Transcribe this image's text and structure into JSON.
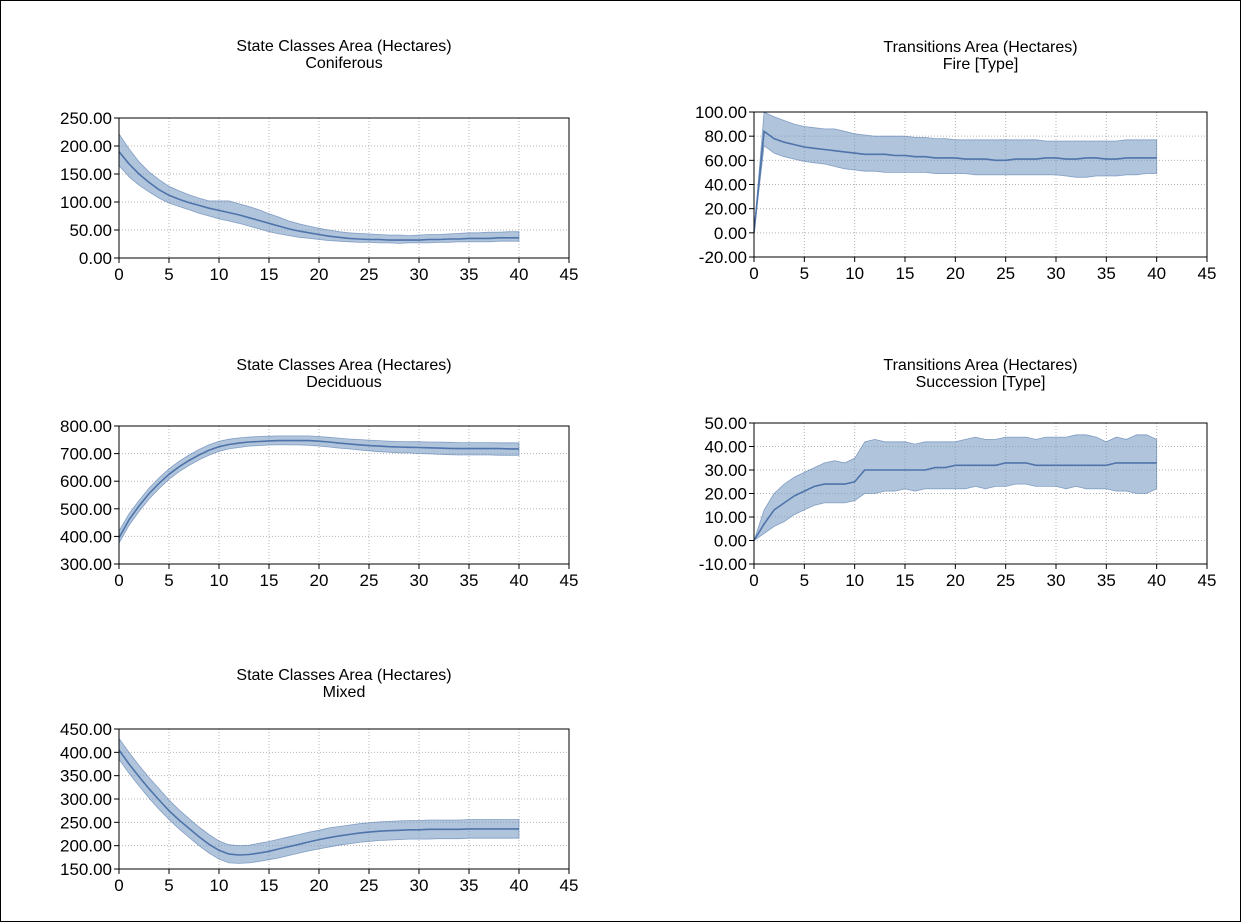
{
  "colors": {
    "band": "#6f93c0",
    "line": "#4f74aa",
    "grid": "#b5b5b5",
    "axis": "#000000"
  },
  "chart_data": [
    {
      "type": "area",
      "title": "State Classes Area (Hectares)",
      "subtitle": "Coniferous",
      "xlim": [
        0,
        45
      ],
      "xticks": [
        0,
        5,
        10,
        15,
        20,
        25,
        30,
        35,
        40,
        45
      ],
      "ylim": [
        0,
        250
      ],
      "yticks": [
        "0.00",
        "50.00",
        "100.00",
        "150.00",
        "200.00",
        "250.00"
      ],
      "grid": true,
      "x": [
        0,
        1,
        2,
        3,
        4,
        5,
        6,
        7,
        8,
        9,
        10,
        11,
        12,
        13,
        14,
        15,
        16,
        17,
        18,
        19,
        20,
        21,
        22,
        23,
        24,
        25,
        26,
        27,
        28,
        29,
        30,
        31,
        32,
        33,
        34,
        35,
        36,
        37,
        38,
        39,
        40
      ],
      "mean": [
        190,
        168,
        150,
        135,
        122,
        112,
        105,
        99,
        94,
        89,
        85,
        81,
        77,
        72,
        67,
        62,
        57,
        52,
        48,
        45,
        42,
        39,
        37,
        35,
        34,
        33,
        33,
        32,
        32,
        32,
        32,
        33,
        33,
        34,
        34,
        35,
        35,
        35,
        36,
        36,
        36
      ],
      "lower": [
        165,
        145,
        130,
        118,
        107,
        98,
        92,
        86,
        80,
        75,
        70,
        66,
        62,
        57,
        52,
        47,
        43,
        40,
        37,
        35,
        33,
        31,
        30,
        29,
        28,
        28,
        27,
        27,
        26,
        27,
        27,
        27,
        28,
        28,
        29,
        29,
        29,
        29,
        30,
        30,
        30
      ],
      "upper": [
        222,
        195,
        172,
        154,
        140,
        128,
        120,
        113,
        107,
        102,
        102,
        102,
        97,
        92,
        86,
        79,
        73,
        66,
        61,
        57,
        53,
        50,
        47,
        45,
        44,
        43,
        42,
        41,
        41,
        40,
        41,
        42,
        42,
        43,
        44,
        45,
        45,
        46,
        46,
        47,
        47
      ]
    },
    {
      "type": "area",
      "title": "Transitions Area (Hectares)",
      "subtitle": "Fire [Type]",
      "xlim": [
        0,
        45
      ],
      "xticks": [
        0,
        5,
        10,
        15,
        20,
        25,
        30,
        35,
        40,
        45
      ],
      "ylim": [
        -20,
        100
      ],
      "yticks": [
        "-20.00",
        "0.00",
        "20.00",
        "40.00",
        "60.00",
        "80.00",
        "100.00"
      ],
      "grid": true,
      "x": [
        0,
        1,
        2,
        3,
        4,
        5,
        6,
        7,
        8,
        9,
        10,
        11,
        12,
        13,
        14,
        15,
        16,
        17,
        18,
        19,
        20,
        21,
        22,
        23,
        24,
        25,
        26,
        27,
        28,
        29,
        30,
        31,
        32,
        33,
        34,
        35,
        36,
        37,
        38,
        39,
        40
      ],
      "mean": [
        0,
        84,
        78,
        75,
        73,
        71,
        70,
        69,
        68,
        67,
        66,
        65,
        65,
        65,
        64,
        64,
        63,
        63,
        62,
        62,
        62,
        61,
        61,
        61,
        60,
        60,
        61,
        61,
        61,
        62,
        62,
        61,
        61,
        62,
        62,
        61,
        61,
        62,
        62,
        62,
        62
      ],
      "lower": [
        0,
        72,
        66,
        63,
        61,
        59,
        58,
        57,
        55,
        53,
        52,
        51,
        51,
        50,
        50,
        50,
        50,
        50,
        49,
        49,
        49,
        49,
        48,
        48,
        48,
        48,
        48,
        48,
        48,
        48,
        48,
        47,
        46,
        46,
        47,
        47,
        47,
        48,
        48,
        49,
        49
      ],
      "upper": [
        0,
        100,
        96,
        93,
        90,
        88,
        87,
        86,
        86,
        84,
        82,
        81,
        80,
        80,
        80,
        80,
        79,
        79,
        78,
        78,
        77,
        77,
        77,
        77,
        77,
        77,
        77,
        77,
        77,
        76,
        76,
        76,
        76,
        76,
        76,
        76,
        76,
        77,
        77,
        77,
        77
      ]
    },
    {
      "type": "area",
      "title": "State Classes Area (Hectares)",
      "subtitle": "Deciduous",
      "xlim": [
        0,
        45
      ],
      "xticks": [
        0,
        5,
        10,
        15,
        20,
        25,
        30,
        35,
        40,
        45
      ],
      "ylim": [
        300,
        800
      ],
      "yticks": [
        "300.00",
        "400.00",
        "500.00",
        "600.00",
        "700.00",
        "800.00"
      ],
      "grid": true,
      "x": [
        0,
        1,
        2,
        3,
        4,
        5,
        6,
        7,
        8,
        9,
        10,
        11,
        12,
        13,
        14,
        15,
        16,
        17,
        18,
        19,
        20,
        21,
        22,
        23,
        24,
        25,
        26,
        27,
        28,
        29,
        30,
        31,
        32,
        33,
        34,
        35,
        36,
        37,
        38,
        39,
        40
      ],
      "mean": [
        395,
        460,
        510,
        555,
        592,
        625,
        652,
        675,
        695,
        712,
        725,
        733,
        738,
        742,
        744,
        746,
        747,
        747,
        747,
        747,
        745,
        742,
        738,
        735,
        732,
        729,
        727,
        725,
        724,
        723,
        722,
        721,
        720,
        719,
        718,
        718,
        718,
        718,
        718,
        717,
        717
      ],
      "lower": [
        375,
        440,
        490,
        535,
        573,
        607,
        634,
        657,
        677,
        694,
        708,
        717,
        722,
        727,
        729,
        731,
        732,
        732,
        731,
        730,
        727,
        724,
        720,
        717,
        713,
        710,
        707,
        705,
        703,
        702,
        700,
        699,
        697,
        696,
        695,
        695,
        695,
        695,
        694,
        694,
        694
      ],
      "upper": [
        420,
        482,
        530,
        575,
        612,
        645,
        672,
        695,
        715,
        732,
        745,
        752,
        757,
        760,
        762,
        763,
        764,
        764,
        764,
        764,
        762,
        759,
        756,
        753,
        751,
        749,
        747,
        745,
        744,
        743,
        743,
        742,
        742,
        741,
        740,
        740,
        740,
        740,
        739,
        739,
        739
      ]
    },
    {
      "type": "area",
      "title": "Transitions Area (Hectares)",
      "subtitle": "Succession [Type]",
      "xlim": [
        0,
        45
      ],
      "xticks": [
        0,
        5,
        10,
        15,
        20,
        25,
        30,
        35,
        40,
        45
      ],
      "ylim": [
        -10,
        50
      ],
      "yticks": [
        "-10.00",
        "0.00",
        "10.00",
        "20.00",
        "30.00",
        "40.00",
        "50.00"
      ],
      "grid": true,
      "x": [
        0,
        1,
        2,
        3,
        4,
        5,
        6,
        7,
        8,
        9,
        10,
        11,
        12,
        13,
        14,
        15,
        16,
        17,
        18,
        19,
        20,
        21,
        22,
        23,
        24,
        25,
        26,
        27,
        28,
        29,
        30,
        31,
        32,
        33,
        34,
        35,
        36,
        37,
        38,
        39,
        40
      ],
      "mean": [
        0,
        7,
        13,
        16,
        19,
        21,
        23,
        24,
        24,
        24,
        25,
        30,
        30,
        30,
        30,
        30,
        30,
        30,
        31,
        31,
        32,
        32,
        32,
        32,
        32,
        33,
        33,
        33,
        32,
        32,
        32,
        32,
        32,
        32,
        32,
        32,
        33,
        33,
        33,
        33,
        33
      ],
      "lower": [
        0,
        3,
        6,
        8,
        11,
        13,
        15,
        16,
        16,
        16,
        17,
        20,
        20,
        21,
        21,
        22,
        21,
        22,
        22,
        22,
        22,
        22,
        23,
        22,
        23,
        23,
        24,
        24,
        23,
        23,
        23,
        22,
        23,
        22,
        22,
        22,
        21,
        21,
        20,
        20,
        22
      ],
      "upper": [
        0,
        13,
        20,
        24,
        27,
        29,
        31,
        33,
        34,
        33,
        35,
        42,
        43,
        42,
        42,
        42,
        41,
        42,
        42,
        42,
        42,
        43,
        44,
        43,
        43,
        44,
        44,
        44,
        43,
        44,
        44,
        44,
        45,
        45,
        44,
        42,
        44,
        43,
        45,
        45,
        43
      ]
    },
    {
      "type": "area",
      "title": "State Classes Area (Hectares)",
      "subtitle": "Mixed",
      "xlim": [
        0,
        45
      ],
      "xticks": [
        0,
        5,
        10,
        15,
        20,
        25,
        30,
        35,
        40,
        45
      ],
      "ylim": [
        150,
        450
      ],
      "yticks": [
        "150.00",
        "200.00",
        "250.00",
        "300.00",
        "350.00",
        "400.00",
        "450.00"
      ],
      "grid": true,
      "x": [
        0,
        1,
        2,
        3,
        4,
        5,
        6,
        7,
        8,
        9,
        10,
        11,
        12,
        13,
        14,
        15,
        16,
        17,
        18,
        19,
        20,
        21,
        22,
        23,
        24,
        25,
        26,
        27,
        28,
        29,
        30,
        31,
        32,
        33,
        34,
        35,
        36,
        37,
        38,
        39,
        40
      ],
      "mean": [
        405,
        375,
        348,
        322,
        298,
        275,
        255,
        237,
        219,
        203,
        190,
        182,
        180,
        181,
        184,
        188,
        193,
        198,
        203,
        208,
        213,
        217,
        221,
        224,
        227,
        229,
        231,
        232,
        233,
        234,
        234,
        235,
        235,
        235,
        235,
        236,
        236,
        236,
        236,
        236,
        236
      ],
      "lower": [
        385,
        355,
        328,
        302,
        278,
        256,
        236,
        218,
        200,
        184,
        171,
        163,
        162,
        163,
        166,
        170,
        174,
        179,
        184,
        189,
        193,
        197,
        201,
        204,
        207,
        209,
        211,
        212,
        213,
        214,
        214,
        214,
        215,
        215,
        215,
        216,
        216,
        216,
        216,
        216,
        216
      ],
      "upper": [
        430,
        400,
        372,
        346,
        322,
        298,
        277,
        258,
        240,
        224,
        210,
        202,
        200,
        201,
        205,
        209,
        214,
        219,
        224,
        229,
        233,
        238,
        241,
        244,
        247,
        249,
        251,
        252,
        253,
        254,
        254,
        255,
        255,
        255,
        255,
        256,
        256,
        256,
        256,
        256,
        256
      ]
    }
  ]
}
